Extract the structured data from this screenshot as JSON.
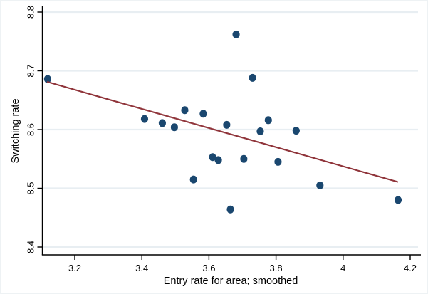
{
  "figure": {
    "background": "#ffffff",
    "axis_color": "#000000",
    "grid_color": "#e8eef2",
    "marker_color": "#1a476f",
    "fit_line_color": "#90353b"
  },
  "chart_data": {
    "type": "scatter",
    "title": "",
    "xlabel": "Entry rate for area; smoothed",
    "ylabel": "Switching rate",
    "xlim": [
      3.1,
      4.26
    ],
    "ylim": [
      8.39,
      8.82
    ],
    "xticks": [
      3.2,
      3.4,
      3.6,
      3.8,
      4.0,
      4.2
    ],
    "xtick_labels": [
      "3.2",
      "3.4",
      "3.6",
      "3.8",
      "4",
      "4.2"
    ],
    "yticks": [
      8.4,
      8.5,
      8.6,
      8.7,
      8.8
    ],
    "ytick_labels": [
      "8.4",
      "8.5",
      "8.6",
      "8.7",
      "8.8"
    ],
    "grid": "horizontal-only",
    "legend": "none",
    "series": [
      {
        "name": "switching-rate-points",
        "type": "scatter",
        "color": "#1a476f",
        "points": [
          [
            3.119,
            8.686
          ],
          [
            3.408,
            8.618
          ],
          [
            3.461,
            8.611
          ],
          [
            3.497,
            8.604
          ],
          [
            3.528,
            8.633
          ],
          [
            3.554,
            8.515
          ],
          [
            3.583,
            8.627
          ],
          [
            3.611,
            8.553
          ],
          [
            3.628,
            8.548
          ],
          [
            3.653,
            8.608
          ],
          [
            3.664,
            8.464
          ],
          [
            3.681,
            8.762
          ],
          [
            3.704,
            8.55
          ],
          [
            3.73,
            8.688
          ],
          [
            3.753,
            8.597
          ],
          [
            3.777,
            8.616
          ],
          [
            3.806,
            8.545
          ],
          [
            3.86,
            8.598
          ],
          [
            3.931,
            8.505
          ],
          [
            4.164,
            8.48
          ]
        ]
      },
      {
        "name": "fitted-line",
        "type": "line",
        "color": "#90353b",
        "points": [
          [
            3.119,
            8.681
          ],
          [
            4.162,
            8.511
          ]
        ]
      }
    ]
  }
}
